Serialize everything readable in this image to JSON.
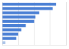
{
  "chart_data": {
    "type": "bar",
    "orientation": "horizontal",
    "categories": [
      null,
      null,
      null,
      null,
      null,
      null,
      null,
      null,
      null,
      null
    ],
    "values": [
      84,
      79,
      58,
      52,
      50,
      37,
      30,
      25,
      22,
      5
    ],
    "colors": [
      "#4a7fd4",
      "#4a7fd4",
      "#4a7fd4",
      "#4a7fd4",
      "#4a7fd4",
      "#4a7fd4",
      "#4a7fd4",
      "#4a7fd4",
      "#4a7fd4",
      "#a9c3e8"
    ],
    "xlim": [
      0,
      100
    ],
    "xticks": [
      0,
      25,
      50,
      75,
      100
    ],
    "grid": true,
    "tick_labels": false
  }
}
